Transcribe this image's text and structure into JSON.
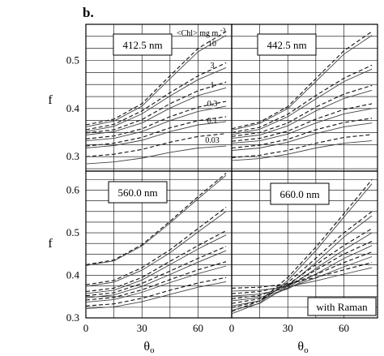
{
  "figure_label": "b.",
  "raman_note": "with Raman",
  "xlabel": "θo",
  "ylabel": "f",
  "chl_header": "<Chl> mg m",
  "chl_header_exp": "-3",
  "chl_values": [
    "10",
    "3",
    "1",
    "0.3",
    "0.1",
    "0.03"
  ],
  "chart_data": [
    {
      "type": "line",
      "panel": "top-left",
      "wavelength": "412.5 nm",
      "xlim": [
        0,
        78
      ],
      "ylim": [
        0.27,
        0.575
      ],
      "xticks": [
        "0",
        "30",
        "60"
      ],
      "yticks": [
        "0.3",
        "0.4",
        "0.5"
      ],
      "ytick_values": [
        0.3,
        0.4,
        0.5
      ],
      "x": [
        0,
        15,
        30,
        45,
        60,
        75
      ],
      "series": [
        {
          "chl": "10",
          "style": "dashed",
          "values": [
            0.366,
            0.378,
            0.41,
            0.468,
            0.525,
            0.56
          ]
        },
        {
          "chl": "10",
          "style": "solid",
          "values": [
            0.362,
            0.374,
            0.405,
            0.462,
            0.518,
            0.552
          ]
        },
        {
          "chl": "3",
          "style": "dashed",
          "values": [
            0.356,
            0.367,
            0.395,
            0.433,
            0.468,
            0.495
          ]
        },
        {
          "chl": "3",
          "style": "solid",
          "values": [
            0.352,
            0.363,
            0.389,
            0.426,
            0.46,
            0.485
          ]
        },
        {
          "chl": "1",
          "style": "dashed",
          "values": [
            0.349,
            0.356,
            0.377,
            0.41,
            0.437,
            0.455
          ]
        },
        {
          "chl": "1",
          "style": "solid",
          "values": [
            0.345,
            0.352,
            0.37,
            0.401,
            0.427,
            0.443
          ]
        },
        {
          "chl": "0.3",
          "style": "dashed",
          "values": [
            0.337,
            0.343,
            0.358,
            0.383,
            0.403,
            0.415
          ]
        },
        {
          "chl": "0.3",
          "style": "solid",
          "values": [
            0.333,
            0.338,
            0.352,
            0.375,
            0.394,
            0.405
          ]
        },
        {
          "chl": "0.1",
          "style": "dashed",
          "values": [
            0.322,
            0.328,
            0.34,
            0.36,
            0.375,
            0.383
          ]
        },
        {
          "chl": "0.1",
          "style": "solid",
          "values": [
            0.318,
            0.323,
            0.334,
            0.352,
            0.366,
            0.373
          ]
        },
        {
          "chl": "0.03",
          "style": "dashed",
          "values": [
            0.3,
            0.305,
            0.315,
            0.33,
            0.342,
            0.348
          ]
        },
        {
          "chl": "0.03",
          "style": "solid",
          "values": [
            0.285,
            0.289,
            0.297,
            0.309,
            0.318,
            0.322
          ]
        }
      ]
    },
    {
      "type": "line",
      "panel": "top-right",
      "wavelength": "442.5 nm",
      "xlim": [
        0,
        78
      ],
      "ylim": [
        0.27,
        0.575
      ],
      "xticks": [
        "0",
        "30",
        "60"
      ],
      "yticks": [
        "0.3",
        "0.4",
        "0.5"
      ],
      "ytick_values": [
        0.3,
        0.4,
        0.5
      ],
      "x": [
        0,
        15,
        30,
        45,
        60,
        75
      ],
      "series": [
        {
          "chl": "10",
          "style": "dashed",
          "values": [
            0.358,
            0.372,
            0.404,
            0.462,
            0.52,
            0.56
          ]
        },
        {
          "chl": "10",
          "style": "solid",
          "values": [
            0.355,
            0.369,
            0.4,
            0.456,
            0.513,
            0.552
          ]
        },
        {
          "chl": "3",
          "style": "dashed",
          "values": [
            0.35,
            0.361,
            0.388,
            0.427,
            0.463,
            0.49
          ]
        },
        {
          "chl": "3",
          "style": "solid",
          "values": [
            0.346,
            0.357,
            0.383,
            0.42,
            0.456,
            0.482
          ]
        },
        {
          "chl": "1",
          "style": "dashed",
          "values": [
            0.342,
            0.35,
            0.37,
            0.403,
            0.43,
            0.448
          ]
        },
        {
          "chl": "1",
          "style": "solid",
          "values": [
            0.338,
            0.345,
            0.364,
            0.395,
            0.421,
            0.438
          ]
        },
        {
          "chl": "0.3",
          "style": "dashed",
          "values": [
            0.332,
            0.338,
            0.353,
            0.378,
            0.398,
            0.41
          ]
        },
        {
          "chl": "0.3",
          "style": "solid",
          "values": [
            0.328,
            0.333,
            0.347,
            0.37,
            0.389,
            0.4
          ]
        },
        {
          "chl": "0.1",
          "style": "dashed",
          "values": [
            0.318,
            0.324,
            0.336,
            0.356,
            0.371,
            0.38
          ]
        },
        {
          "chl": "0.1",
          "style": "solid",
          "values": [
            0.313,
            0.318,
            0.33,
            0.348,
            0.362,
            0.37
          ]
        },
        {
          "chl": "0.03",
          "style": "dashed",
          "values": [
            0.298,
            0.303,
            0.313,
            0.328,
            0.34,
            0.346
          ]
        },
        {
          "chl": "0.03",
          "style": "solid",
          "values": [
            0.292,
            0.296,
            0.305,
            0.318,
            0.328,
            0.333
          ]
        }
      ]
    },
    {
      "type": "line",
      "panel": "bottom-left",
      "wavelength": "560.0 nm",
      "xlim": [
        0,
        78
      ],
      "ylim": [
        0.3,
        0.645
      ],
      "xticks": [
        "0",
        "30",
        "60"
      ],
      "yticks": [
        "0.3",
        "0.4",
        "0.5",
        "0.6"
      ],
      "ytick_values": [
        0.3,
        0.4,
        0.5,
        0.6
      ],
      "x": [
        0,
        15,
        30,
        45,
        60,
        75
      ],
      "series": [
        {
          "chl": "10",
          "style": "dashed",
          "values": [
            0.425,
            0.436,
            0.472,
            0.527,
            0.585,
            0.64
          ]
        },
        {
          "chl": "10",
          "style": "solid",
          "values": [
            0.423,
            0.434,
            0.469,
            0.523,
            0.58,
            0.635
          ]
        },
        {
          "chl": "3",
          "style": "dashed",
          "values": [
            0.378,
            0.388,
            0.418,
            0.46,
            0.51,
            0.56
          ]
        },
        {
          "chl": "3",
          "style": "solid",
          "values": [
            0.374,
            0.384,
            0.412,
            0.453,
            0.502,
            0.55
          ]
        },
        {
          "chl": "1",
          "style": "dashed",
          "values": [
            0.362,
            0.37,
            0.395,
            0.433,
            0.47,
            0.505
          ]
        },
        {
          "chl": "1",
          "style": "solid",
          "values": [
            0.357,
            0.365,
            0.389,
            0.425,
            0.462,
            0.495
          ]
        },
        {
          "chl": "0.3",
          "style": "dashed",
          "values": [
            0.352,
            0.359,
            0.381,
            0.41,
            0.44,
            0.468
          ]
        },
        {
          "chl": "0.3",
          "style": "solid",
          "values": [
            0.347,
            0.354,
            0.374,
            0.402,
            0.431,
            0.458
          ]
        },
        {
          "chl": "0.1",
          "style": "dashed",
          "values": [
            0.342,
            0.348,
            0.366,
            0.39,
            0.413,
            0.432
          ]
        },
        {
          "chl": "0.1",
          "style": "solid",
          "values": [
            0.337,
            0.343,
            0.36,
            0.383,
            0.404,
            0.422
          ]
        },
        {
          "chl": "0.03",
          "style": "dashed",
          "values": [
            0.328,
            0.333,
            0.346,
            0.365,
            0.382,
            0.395
          ]
        },
        {
          "chl": "0.03",
          "style": "solid",
          "values": [
            0.322,
            0.326,
            0.338,
            0.355,
            0.372,
            0.385
          ]
        }
      ]
    },
    {
      "type": "line",
      "panel": "bottom-right",
      "wavelength": "660.0 nm",
      "xlim": [
        0,
        78
      ],
      "ylim": [
        0.3,
        0.645
      ],
      "xticks": [
        "0",
        "30",
        "60"
      ],
      "yticks": [
        "0.3",
        "0.4",
        "0.5",
        "0.6"
      ],
      "ytick_values": [
        0.3,
        0.4,
        0.5,
        0.6
      ],
      "x": [
        0,
        15,
        30,
        45,
        60,
        75
      ],
      "series": [
        {
          "chl": "10",
          "style": "dashed",
          "values": [
            0.315,
            0.34,
            0.395,
            0.466,
            0.545,
            0.625
          ]
        },
        {
          "chl": "10",
          "style": "solid",
          "values": [
            0.31,
            0.335,
            0.388,
            0.458,
            0.537,
            0.615
          ]
        },
        {
          "chl": "3",
          "style": "dashed",
          "values": [
            0.324,
            0.34,
            0.383,
            0.44,
            0.5,
            0.55
          ]
        },
        {
          "chl": "3",
          "style": "solid",
          "values": [
            0.318,
            0.334,
            0.375,
            0.43,
            0.49,
            0.54
          ]
        },
        {
          "chl": "1",
          "style": "dashed",
          "values": [
            0.334,
            0.345,
            0.378,
            0.425,
            0.47,
            0.51
          ]
        },
        {
          "chl": "1",
          "style": "solid",
          "values": [
            0.328,
            0.34,
            0.37,
            0.416,
            0.46,
            0.5
          ]
        },
        {
          "chl": "0.3",
          "style": "dashed",
          "values": [
            0.345,
            0.353,
            0.375,
            0.412,
            0.45,
            0.48
          ]
        },
        {
          "chl": "0.3",
          "style": "solid",
          "values": [
            0.34,
            0.348,
            0.368,
            0.403,
            0.44,
            0.47
          ]
        },
        {
          "chl": "0.1",
          "style": "dashed",
          "values": [
            0.357,
            0.362,
            0.377,
            0.402,
            0.43,
            0.455
          ]
        },
        {
          "chl": "0.1",
          "style": "solid",
          "values": [
            0.351,
            0.356,
            0.37,
            0.394,
            0.42,
            0.444
          ]
        },
        {
          "chl": "0.03",
          "style": "dashed",
          "values": [
            0.37,
            0.372,
            0.38,
            0.395,
            0.413,
            0.43
          ]
        },
        {
          "chl": "0.03",
          "style": "solid",
          "values": [
            0.363,
            0.365,
            0.373,
            0.387,
            0.403,
            0.418
          ]
        }
      ]
    }
  ]
}
